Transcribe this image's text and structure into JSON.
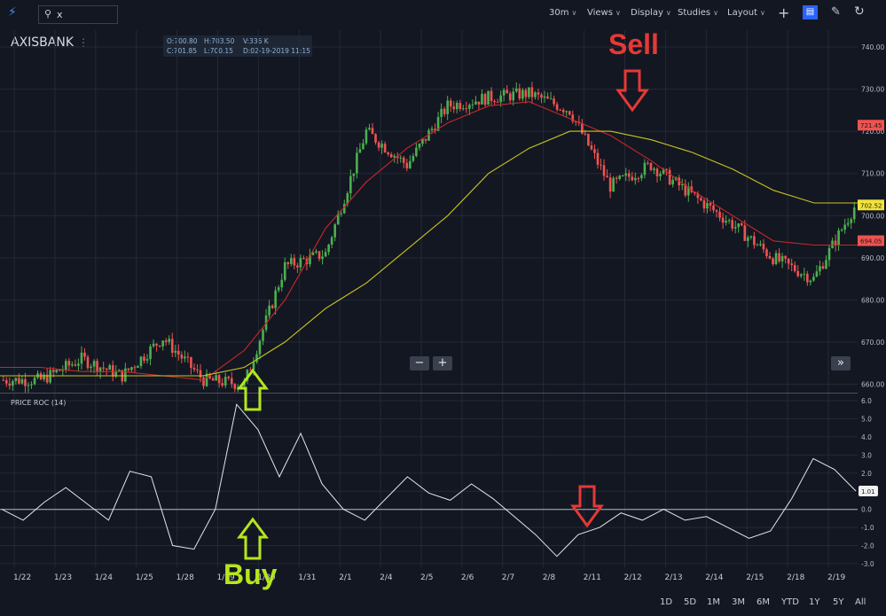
{
  "toolbar": {
    "search_value": "x",
    "interval": "30m",
    "views": "Views",
    "display": "Display",
    "studies": "Studies",
    "layout": "Layout"
  },
  "symbol": "AXISBANK",
  "ohlc": {
    "open": "O:700.80",
    "high": "H:703.50",
    "volume": "V:336 K",
    "close": "C:701.85",
    "low": "L:700.15",
    "date": "D:02-19-2019 11:15"
  },
  "annotations": {
    "sell": "Sell",
    "buy": "Buy"
  },
  "ranges": [
    "1D",
    "5D",
    "1M",
    "3M",
    "6M",
    "YTD",
    "1Y",
    "5Y",
    "All"
  ],
  "colors": {
    "background": "#131722",
    "up": "#4caf50",
    "down": "#ef5350",
    "sma_red": "#c62828",
    "sma_yellow": "#c9c421",
    "roc_line": "#e6e6e6",
    "sell_arrow": "#e53935",
    "buy_arrow": "#b5e61d"
  },
  "icons": [
    "lightning-icon",
    "search-icon",
    "plus-icon",
    "comment-icon",
    "pencil-icon",
    "undo-icon",
    "menu-dots-icon",
    "zoom-out-icon",
    "zoom-in-icon",
    "scroll-forward-icon"
  ],
  "chart_data": [
    {
      "type": "candlestick",
      "title": "AXISBANK",
      "x_tick_labels": [
        "1/22",
        "1/23",
        "1/24",
        "1/25",
        "1/28",
        "1/29",
        "1/30",
        "1/31",
        "2/1",
        "2/4",
        "2/5",
        "2/6",
        "2/7",
        "2/8",
        "2/11",
        "2/12",
        "2/13",
        "2/14",
        "2/15",
        "2/18",
        "2/19"
      ],
      "y_ticks": [
        660,
        670,
        680,
        690,
        700,
        710,
        720,
        730,
        740
      ],
      "y_tick_labels": [
        "660.00",
        "670.00",
        "680.00",
        "690.00",
        "700.00",
        "710.00",
        "720.00",
        "730.00",
        "740.00"
      ],
      "ylim": [
        658,
        744
      ],
      "daily_close": [
        661,
        666,
        662,
        671,
        661,
        660,
        688,
        691,
        720,
        712,
        726,
        728,
        729,
        725,
        707,
        712,
        705,
        698,
        690,
        685,
        702
      ],
      "series": [
        {
          "name": "",
          "color": "#c62828",
          "values": [
            664,
            664,
            663,
            663,
            662,
            661,
            668,
            680,
            697,
            708,
            716,
            722,
            726,
            727,
            723,
            719,
            713,
            706,
            700,
            694,
            693
          ]
        },
        {
          "name": "",
          "color": "#c9c421",
          "values": [
            662,
            662,
            662,
            662,
            662,
            662,
            664,
            670,
            678,
            684,
            692,
            700,
            710,
            716,
            720,
            720,
            718,
            715,
            711,
            706,
            703
          ]
        }
      ],
      "price_labels": [
        {
          "text": "721.45",
          "value": 721.45,
          "color": "#ef5350"
        },
        {
          "text": "702.52",
          "value": 702.52,
          "color": "#f2e33a"
        },
        {
          "text": "694.05",
          "value": 694.05,
          "color": "#ef5350"
        }
      ]
    },
    {
      "type": "line",
      "title": "PRICE ROC (14)",
      "y_ticks": [
        -3,
        -2,
        -1,
        0,
        1,
        2,
        3,
        4,
        5,
        6
      ],
      "y_tick_labels": [
        "-3.0",
        "-2.0",
        "-1.0",
        "0.0",
        "1.0",
        "2.0",
        "3.0",
        "4.0",
        "5.0",
        "6.0"
      ],
      "ylim": [
        -3.2,
        6.2
      ],
      "values": [
        0.0,
        -0.6,
        0.4,
        1.2,
        0.3,
        -0.6,
        2.1,
        1.8,
        -2.0,
        -2.2,
        0.0,
        5.8,
        4.4,
        1.8,
        4.2,
        1.4,
        0.0,
        -0.6,
        0.6,
        1.8,
        0.9,
        0.5,
        1.4,
        0.6,
        -0.4,
        -1.4,
        -2.6,
        -1.4,
        -1.0,
        -0.2,
        -0.6,
        0.0,
        -0.6,
        -0.4,
        -1.0,
        -1.6,
        -1.2,
        0.6,
        2.8,
        2.2,
        1.01
      ],
      "last_value_label": "1.01"
    }
  ]
}
